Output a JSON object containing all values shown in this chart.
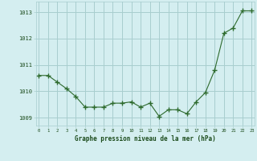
{
  "x": [
    0,
    1,
    2,
    3,
    4,
    5,
    6,
    7,
    8,
    9,
    10,
    11,
    12,
    13,
    14,
    15,
    16,
    17,
    18,
    19,
    20,
    21,
    22,
    23
  ],
  "y": [
    1010.6,
    1010.6,
    1010.35,
    1010.1,
    1009.8,
    1009.4,
    1009.4,
    1009.4,
    1009.55,
    1009.55,
    1009.6,
    1009.4,
    1009.55,
    1009.05,
    1009.3,
    1009.3,
    1009.15,
    1009.6,
    1009.95,
    1010.8,
    1012.2,
    1012.4,
    1013.05,
    1013.05
  ],
  "ylim": [
    1008.7,
    1013.4
  ],
  "yticks": [
    1009,
    1010,
    1011,
    1012,
    1013
  ],
  "xticks": [
    0,
    1,
    2,
    3,
    4,
    5,
    6,
    7,
    8,
    9,
    10,
    11,
    12,
    13,
    14,
    15,
    16,
    17,
    18,
    19,
    20,
    21,
    22,
    23
  ],
  "xlabel": "Graphe pression niveau de la mer (hPa)",
  "line_color": "#2d6a2d",
  "marker_color": "#2d6a2d",
  "bg_color": "#d4eef0",
  "grid_color": "#a8cece",
  "tick_label_color": "#1a4a1a",
  "xlabel_color": "#1a4a1a"
}
